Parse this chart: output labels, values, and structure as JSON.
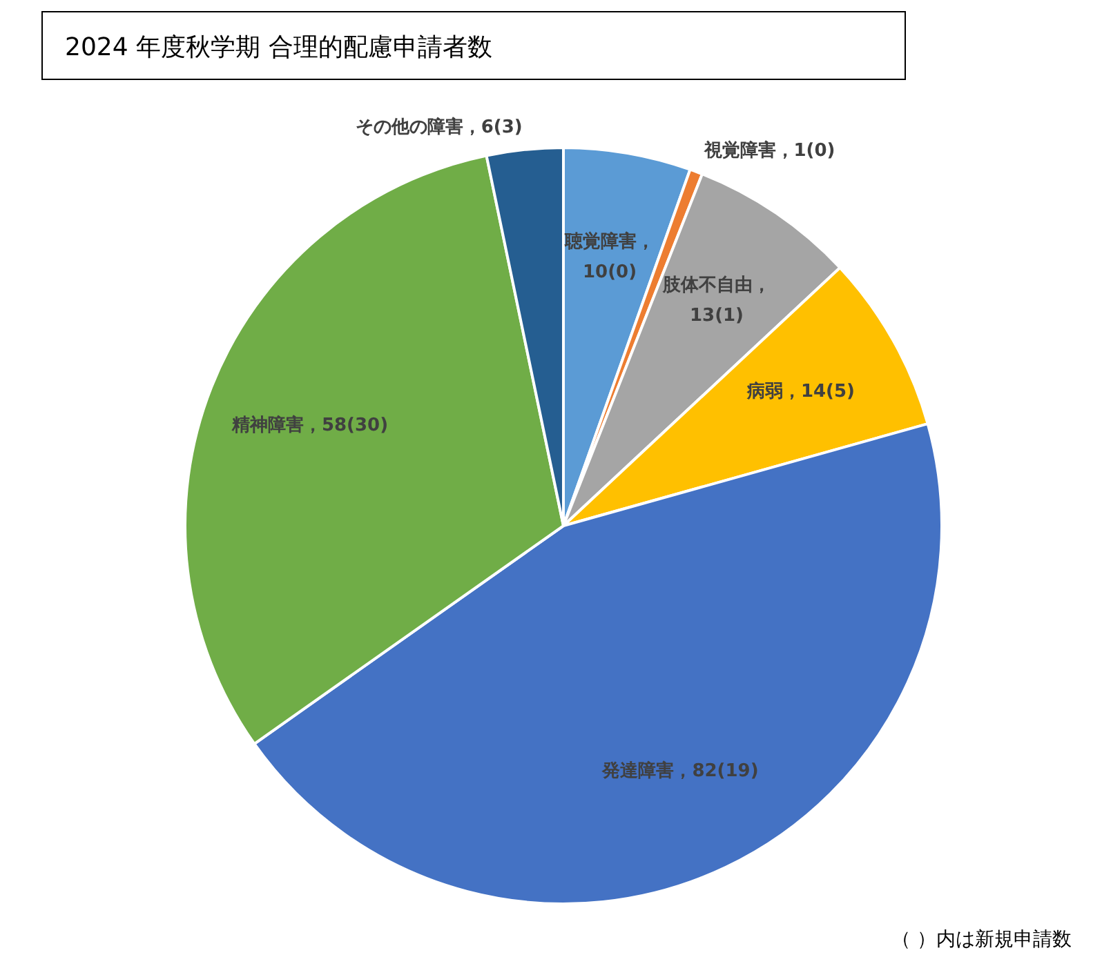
{
  "chart_data": {
    "type": "pie",
    "title": "2024 年度秋学期  合理的配慮申請者数",
    "categories": [
      "聴覚障害",
      "視覚障害",
      "肢体不自由",
      "病弱",
      "発達障害",
      "精神障害",
      "その他の障害"
    ],
    "values": [
      10,
      1,
      13,
      14,
      82,
      58,
      6
    ],
    "colors": [
      "#5b9bd5",
      "#ed7d31",
      "#a5a5a5",
      "#ffc000",
      "#4472c4",
      "#70ad47",
      "#255e91"
    ],
    "value_labels": [
      "，\n10(0)",
      "，1(0)",
      "，\n13(1)",
      "，14(5)",
      "，82(19)",
      "，58(30)",
      "，6(3)"
    ],
    "legend": false,
    "annotations": [
      "（ ）内は新規申請数"
    ]
  }
}
